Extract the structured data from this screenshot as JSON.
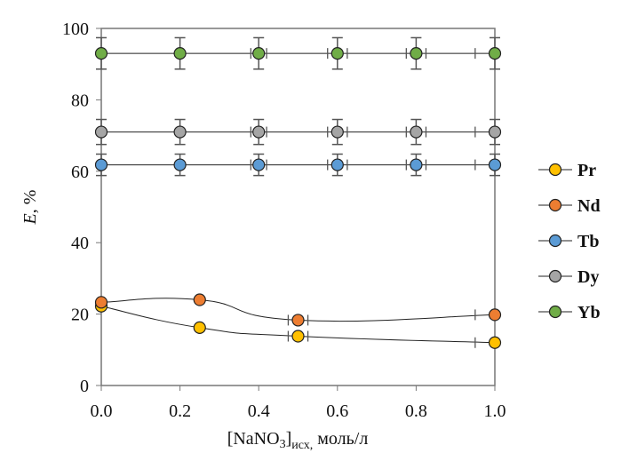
{
  "chart_data": {
    "type": "line",
    "xlabel_main": "[NaNO",
    "xlabel_sub3": "3",
    "xlabel_bracket": "]",
    "xlabel_sub": "исх,",
    "xlabel_unit": " моль/л",
    "ylabel_italic": "E",
    "ylabel_rest": ", %",
    "xlim": [
      0,
      1.0
    ],
    "ylim": [
      0,
      100
    ],
    "xticks": [
      "0.0",
      "0.2",
      "0.4",
      "0.6",
      "0.8",
      "1.0"
    ],
    "yticks": [
      "0",
      "20",
      "40",
      "60",
      "80",
      "100"
    ],
    "grid": false,
    "legend_position": "right",
    "series": [
      {
        "name": "Pr",
        "color": "#FFC000",
        "x": [
          0,
          0.25,
          0.5,
          1.0
        ],
        "y": [
          22.2,
          16.2,
          13.8,
          12.0
        ],
        "yerr": [
          0,
          0,
          0,
          0
        ],
        "xerr": [
          0,
          0,
          0.025,
          0.05
        ]
      },
      {
        "name": "Nd",
        "color": "#ED7D31",
        "x": [
          0,
          0.25,
          0.5,
          1.0
        ],
        "y": [
          23.3,
          24.0,
          18.3,
          19.8
        ],
        "yerr": [
          0,
          0,
          0,
          0
        ],
        "xerr": [
          0,
          0,
          0.025,
          0.05
        ]
      },
      {
        "name": "Tb",
        "color": "#5B9BD5",
        "x": [
          0,
          0.2,
          0.4,
          0.6,
          0.8,
          1.0
        ],
        "y": [
          61.8,
          61.8,
          61.8,
          61.8,
          61.8,
          61.8
        ],
        "yerr": [
          3,
          3,
          3,
          3,
          3,
          3
        ],
        "xerr": [
          0,
          0,
          0.02,
          0.025,
          0.025,
          0.05
        ]
      },
      {
        "name": "Dy",
        "color": "#A5A5A5",
        "x": [
          0,
          0.2,
          0.4,
          0.6,
          0.8,
          1.0
        ],
        "y": [
          71,
          71,
          71,
          71,
          71,
          71
        ],
        "yerr": [
          3.5,
          3.5,
          3.5,
          3.5,
          3.5,
          3.5
        ],
        "xerr": [
          0,
          0,
          0.02,
          0.025,
          0.025,
          0.05
        ]
      },
      {
        "name": "Yb",
        "color": "#70AD47",
        "x": [
          0,
          0.2,
          0.4,
          0.6,
          0.8,
          1.0
        ],
        "y": [
          93,
          93,
          93,
          93,
          93,
          93
        ],
        "yerr": [
          4.4,
          4.4,
          4.4,
          4.4,
          4.4,
          4.4
        ],
        "xerr": [
          0,
          0,
          0.02,
          0.025,
          0.025,
          0.05
        ]
      }
    ]
  }
}
